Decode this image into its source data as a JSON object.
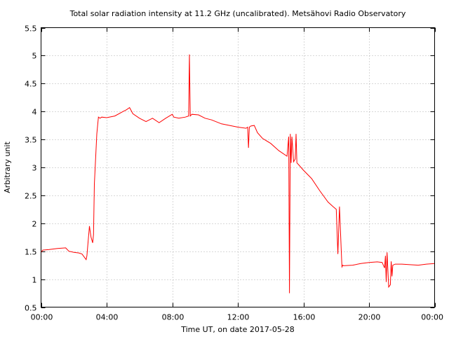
{
  "chart_data": {
    "type": "line",
    "title": "Total solar radiation intensity at 11.2 GHz (uncalibrated). Metsähovi Radio Observatory",
    "xlabel": "Time UT, on date 2017-05-28",
    "ylabel": "Arbitrary unit",
    "xlim": [
      0,
      24
    ],
    "ylim": [
      0.5,
      5.5
    ],
    "x_ticks": [
      0,
      4,
      8,
      12,
      16,
      20,
      24
    ],
    "x_tick_labels": [
      "00:00",
      "04:00",
      "08:00",
      "12:00",
      "16:00",
      "20:00",
      "00:00"
    ],
    "y_ticks": [
      0.5,
      1,
      1.5,
      2,
      2.5,
      3,
      3.5,
      4,
      4.5,
      5,
      5.5
    ],
    "y_tick_labels": [
      "0.5",
      "1",
      "1.5",
      "2",
      "2.5",
      "3",
      "3.5",
      "4",
      "4.5",
      "5",
      "5.5"
    ],
    "grid": true,
    "series_color": "#ff0000",
    "series": [
      {
        "x": [
          0.0,
          0.1,
          0.5,
          1.0,
          1.5,
          1.7,
          2.0,
          2.3,
          2.5,
          2.75,
          2.8,
          2.85,
          2.95,
          3.0,
          3.05,
          3.15,
          3.2,
          3.25,
          3.4,
          3.5,
          3.6,
          3.7,
          4.0,
          4.5,
          5.0,
          5.2,
          5.4,
          5.6,
          6.0,
          6.4,
          6.8,
          7.2,
          7.6,
          8.0,
          8.1,
          8.4,
          8.8,
          9.0,
          9.05,
          9.1,
          9.2,
          9.6,
          10.0,
          10.4,
          11.0,
          11.5,
          12.0,
          12.5,
          12.6,
          12.65,
          12.7,
          12.8,
          13.0,
          13.2,
          13.5,
          14.0,
          14.5,
          15.0,
          15.1,
          15.15,
          15.2,
          15.25,
          15.3,
          15.4,
          15.5,
          15.55,
          15.6,
          15.7,
          16.0,
          16.5,
          17.0,
          17.5,
          17.8,
          18.0,
          18.1,
          18.2,
          18.3,
          18.35,
          18.4,
          18.45,
          19.0,
          19.5,
          20.0,
          20.5,
          20.8,
          20.95,
          21.0,
          21.05,
          21.1,
          21.2,
          21.3,
          21.35,
          21.4,
          21.45,
          21.6,
          22.0,
          22.5,
          23.0,
          23.5,
          24.0
        ],
        "y": [
          1.48,
          1.52,
          1.53,
          1.55,
          1.56,
          1.5,
          1.48,
          1.47,
          1.45,
          1.35,
          1.42,
          1.6,
          1.95,
          1.85,
          1.75,
          1.65,
          1.8,
          2.7,
          3.6,
          3.9,
          3.88,
          3.9,
          3.89,
          3.92,
          4.0,
          4.03,
          4.07,
          3.96,
          3.88,
          3.82,
          3.88,
          3.8,
          3.88,
          3.95,
          3.9,
          3.88,
          3.9,
          3.92,
          5.02,
          3.92,
          3.95,
          3.94,
          3.88,
          3.85,
          3.78,
          3.75,
          3.72,
          3.7,
          3.72,
          3.35,
          3.72,
          3.74,
          3.75,
          3.62,
          3.52,
          3.43,
          3.3,
          3.2,
          3.55,
          0.75,
          3.6,
          3.08,
          3.55,
          3.1,
          3.15,
          3.6,
          3.08,
          3.05,
          2.95,
          2.8,
          2.58,
          2.38,
          2.3,
          2.25,
          1.45,
          2.3,
          1.55,
          1.22,
          1.25,
          1.24,
          1.25,
          1.28,
          1.3,
          1.31,
          1.3,
          1.2,
          1.42,
          0.95,
          1.48,
          0.86,
          0.9,
          1.32,
          1.05,
          1.25,
          1.27,
          1.27,
          1.26,
          1.25,
          1.27,
          1.28
        ]
      }
    ]
  }
}
